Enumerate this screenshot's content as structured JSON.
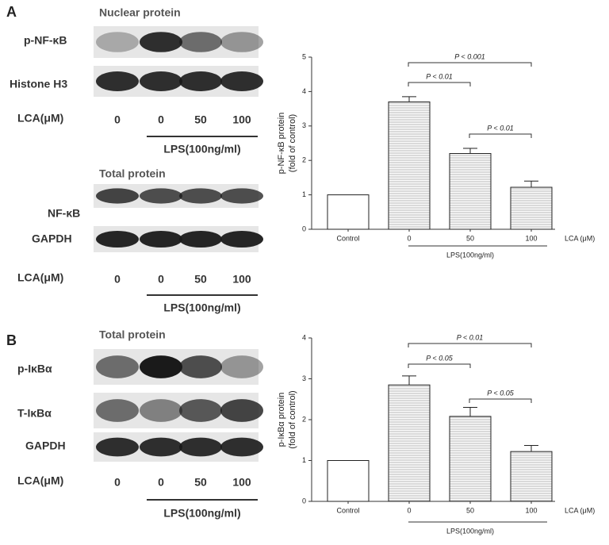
{
  "panels": [
    {
      "label": "A",
      "blots": [
        {
          "heading": "Nuclear protein",
          "rows": [
            "p-NF-κB",
            "Histone H3"
          ],
          "lca_label": "LCA(μM)",
          "lanes": [
            "0",
            "0",
            "50",
            "100"
          ],
          "lps_label": "LPS(100ng/ml)"
        },
        {
          "heading": "Total protein",
          "rows": [
            "NF-κB",
            "GAPDH"
          ],
          "lca_label": "LCA(μM)",
          "lanes": [
            "0",
            "0",
            "50",
            "100"
          ],
          "lps_label": "LPS(100ng/ml)"
        }
      ]
    },
    {
      "label": "B",
      "blots": [
        {
          "heading": "Total protein",
          "rows": [
            "p-IκBα",
            "T-IκBα",
            "GAPDH"
          ],
          "lca_label": "LCA(μM)",
          "lanes": [
            "0",
            "0",
            "50",
            "100"
          ],
          "lps_label": "LPS(100ng/ml)"
        }
      ]
    }
  ],
  "chart_data": [
    {
      "type": "bar",
      "ylabel": [
        "p-NF-κB protein",
        "(fold of control)"
      ],
      "categories": [
        "Control",
        "0",
        "50",
        "100"
      ],
      "values": [
        1.0,
        3.7,
        2.2,
        1.22
      ],
      "errors": [
        0,
        0.15,
        0.15,
        0.18
      ],
      "color": "#ffffff",
      "ylim": [
        0,
        5
      ],
      "yticks": [
        0,
        1,
        2,
        3,
        4,
        5
      ],
      "xlabel": "LCA (μM)",
      "group_label": "LPS(100ng/ml)",
      "annotations": [
        "P < 0.001",
        "P < 0.01",
        "P < 0.01"
      ]
    },
    {
      "type": "bar",
      "ylabel": [
        "p-IκBα protein",
        "(fold of control)"
      ],
      "categories": [
        "Control",
        "0",
        "50",
        "100"
      ],
      "values": [
        1.0,
        2.85,
        2.08,
        1.22
      ],
      "errors": [
        0,
        0.22,
        0.22,
        0.15
      ],
      "color": "#ffffff",
      "ylim": [
        0,
        4
      ],
      "yticks": [
        0,
        1,
        2,
        3,
        4
      ],
      "xlabel": "LCA (μM)",
      "group_label": "LPS(100ng/ml)",
      "annotations": [
        "P < 0.01",
        "P < 0.05",
        "P < 0.05"
      ]
    }
  ]
}
